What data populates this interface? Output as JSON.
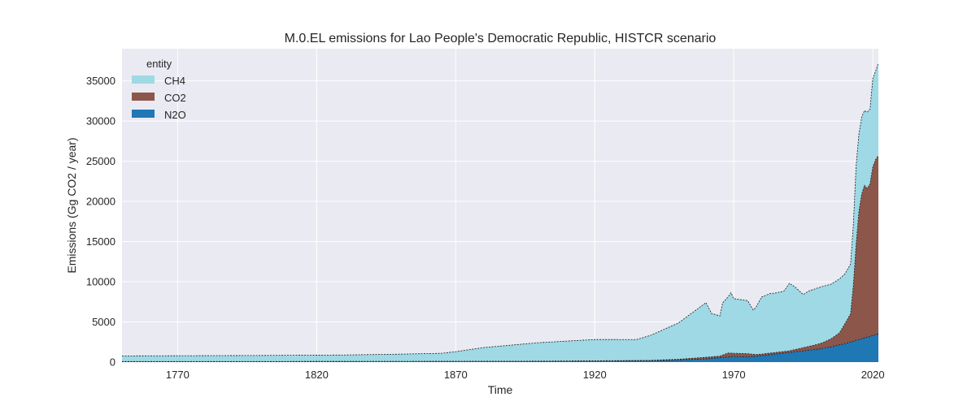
{
  "chart_data": {
    "type": "area",
    "stacked": true,
    "title": "M.0.EL emissions for Lao People's Democratic Republic, HISTCR scenario",
    "xlabel": "Time",
    "ylabel": "Emissions (Gg CO2 / year)",
    "xlim": [
      1750,
      2022
    ],
    "ylim": [
      0,
      39000
    ],
    "xticks": [
      1770,
      1820,
      1870,
      1920,
      1970,
      2020
    ],
    "yticks": [
      0,
      5000,
      10000,
      15000,
      20000,
      25000,
      30000,
      35000
    ],
    "grid": true,
    "legend": {
      "title": "entity",
      "placement": "top-left",
      "entries": [
        "CH4",
        "CO2",
        "N2O"
      ]
    },
    "colors": {
      "CH4": "#9ed9e5",
      "CO2": "#8c564b",
      "N2O": "#1f77b4",
      "background": "#eaeaf2",
      "grid": "#ffffff"
    },
    "series": [
      {
        "name": "N2O",
        "x": [
          1750,
          1800,
          1850,
          1900,
          1920,
          1940,
          1950,
          1960,
          1965,
          1970,
          1975,
          1980,
          1990,
          2000,
          2005,
          2010,
          2015,
          2018,
          2020,
          2021,
          2022
        ],
        "values": [
          60,
          65,
          75,
          100,
          130,
          170,
          250,
          400,
          550,
          700,
          650,
          800,
          1200,
          1600,
          1900,
          2300,
          2800,
          3100,
          3300,
          3400,
          3500
        ]
      },
      {
        "name": "CO2",
        "x": [
          1750,
          1800,
          1850,
          1900,
          1920,
          1940,
          1950,
          1960,
          1965,
          1966,
          1967,
          1968,
          1969,
          1970,
          1975,
          1978,
          1980,
          1985,
          1990,
          1995,
          2000,
          2002,
          2005,
          2008,
          2010,
          2012,
          2013,
          2014,
          2015,
          2016,
          2017,
          2018,
          2019,
          2020,
          2021,
          2022
        ],
        "values": [
          10,
          10,
          15,
          20,
          30,
          50,
          100,
          200,
          200,
          300,
          400,
          500,
          450,
          400,
          400,
          200,
          200,
          200,
          200,
          400,
          600,
          700,
          1000,
          1500,
          2500,
          3500,
          7000,
          12000,
          16000,
          18000,
          19000,
          18500,
          19000,
          21000,
          21800,
          22200
        ]
      },
      {
        "name": "CH4",
        "x": [
          1750,
          1800,
          1830,
          1850,
          1865,
          1870,
          1880,
          1900,
          1920,
          1935,
          1940,
          1950,
          1960,
          1962,
          1965,
          1966,
          1968,
          1969,
          1970,
          1975,
          1977,
          1978,
          1980,
          1983,
          1985,
          1988,
          1990,
          1992,
          1995,
          1997,
          2000,
          2002,
          2005,
          2008,
          2010,
          2012,
          2013,
          2014,
          2015,
          2016,
          2017,
          2018,
          2019,
          2020,
          2021,
          2022
        ],
        "values": [
          700,
          750,
          800,
          900,
          1000,
          1200,
          1700,
          2300,
          2650,
          2600,
          3100,
          4500,
          6800,
          5400,
          5000,
          6500,
          7000,
          7500,
          6800,
          6600,
          5500,
          5900,
          7100,
          7400,
          7400,
          7500,
          8400,
          7800,
          6600,
          6900,
          7000,
          7000,
          6800,
          6700,
          6200,
          6200,
          7500,
          9800,
          9600,
          9600,
          9300,
          9500,
          9300,
          11000,
          11000,
          11500
        ]
      }
    ]
  }
}
